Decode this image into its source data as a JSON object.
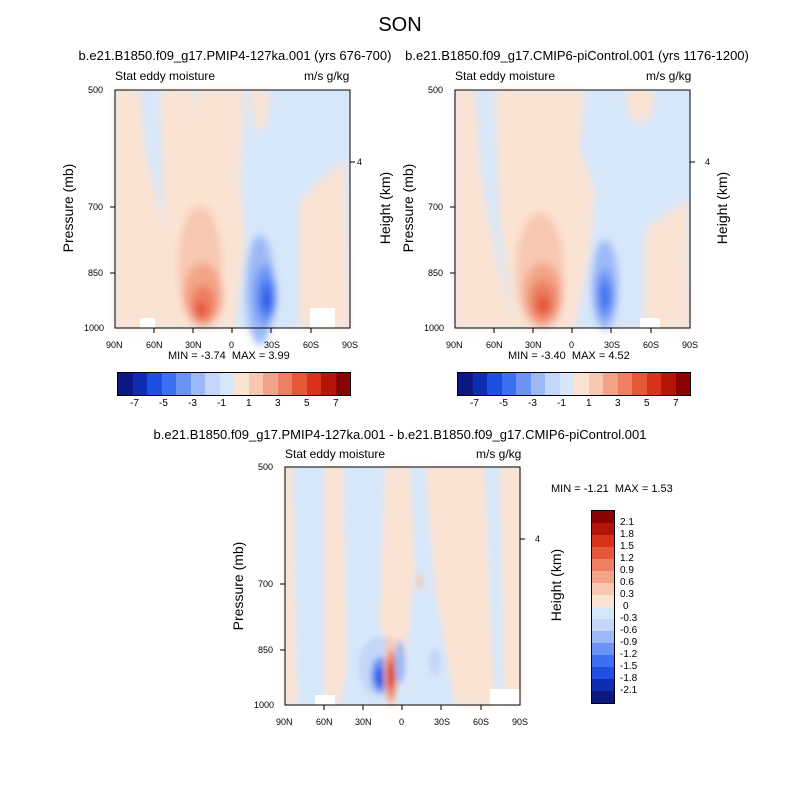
{
  "figure": {
    "title": "SON",
    "left_label": "Stat eddy moisture",
    "right_label": "m/s g/kg",
    "y_title": "Pressure (mb)",
    "y2_title": "Height (km)",
    "y_ticks": [
      "500",
      "700",
      "850",
      "1000"
    ],
    "y2_ticks": [
      "4"
    ],
    "x_ticks": [
      "90N",
      "60N",
      "30N",
      "0",
      "30S",
      "60S",
      "90S"
    ]
  },
  "colors": {
    "cool": [
      "#0a1880",
      "#0f2db3",
      "#1f4fe0",
      "#3d6ff2",
      "#6b93f5",
      "#9bb8f7",
      "#c4d6f9",
      "#d7e7fa"
    ],
    "warm": [
      "#fbe3d3",
      "#f8c8b1",
      "#f3a488",
      "#ee7f62",
      "#e65639",
      "#d8321b",
      "#b51508",
      "#8b0000"
    ]
  },
  "chart_data": [
    {
      "type": "heatmap",
      "title": "b.e21.B1850.f09_g17.PMIP4-127ka.001 (yrs 676-700)",
      "xlabel": "",
      "ylabel": "Pressure (mb)",
      "y2label": "Height (km)",
      "min_label": "MIN =",
      "min": "-3.74",
      "max_label": "MAX =",
      "max": "3.99",
      "colorbar_labels": [
        "-7",
        "-5",
        "-3",
        "-1",
        "1",
        "3",
        "5",
        "7"
      ],
      "features": [
        {
          "lat": 25,
          "p": 940,
          "value": 3.99
        },
        {
          "lat": 30,
          "p": 850,
          "value": 2.5
        },
        {
          "lat": 40,
          "p": 720,
          "value": 1.2
        },
        {
          "lat": -22,
          "p": 920,
          "value": -3.74
        },
        {
          "lat": -20,
          "p": 800,
          "value": -1.5
        },
        {
          "lat": -15,
          "p": 720,
          "value": -0.8
        }
      ]
    },
    {
      "type": "heatmap",
      "title": "b.e21.B1850.f09_g17.CMIP6-piControl.001 (yrs 1176-1200)",
      "xlabel": "",
      "ylabel": "Pressure (mb)",
      "y2label": "Height (km)",
      "min_label": "MIN =",
      "min": "-3.40",
      "max_label": "MAX =",
      "max": "4.52",
      "colorbar_labels": [
        "-7",
        "-5",
        "-3",
        "-1",
        "1",
        "3",
        "5",
        "7"
      ],
      "features": [
        {
          "lat": 25,
          "p": 930,
          "value": 4.52
        },
        {
          "lat": 30,
          "p": 850,
          "value": 2.8
        },
        {
          "lat": 40,
          "p": 720,
          "value": 1.3
        },
        {
          "lat": -22,
          "p": 910,
          "value": -3.4
        },
        {
          "lat": -20,
          "p": 800,
          "value": -1.4
        }
      ]
    },
    {
      "type": "heatmap",
      "title": "b.e21.B1850.f09_g17.PMIP4-127ka.001 - b.e21.B1850.f09_g17.CMIP6-piControl.001",
      "xlabel": "",
      "ylabel": "Pressure (mb)",
      "y2label": "Height (km)",
      "min_label": "MIN =",
      "min": "-1.21",
      "max_label": "MAX =",
      "max": "1.53",
      "colorbar_labels": [
        "2.1",
        "1.8",
        "1.5",
        "1.2",
        "0.9",
        "0.6",
        "0.3",
        "0",
        "-0.3",
        "-0.6",
        "-0.9",
        "-1.2",
        "-1.5",
        "-1.8",
        "-2.1"
      ],
      "features": [
        {
          "lat": 12,
          "p": 920,
          "value": 1.53
        },
        {
          "lat": 18,
          "p": 920,
          "value": -1.21
        },
        {
          "lat": 22,
          "p": 860,
          "value": -0.6
        },
        {
          "lat": 8,
          "p": 880,
          "value": -0.3
        },
        {
          "lat": -15,
          "p": 700,
          "value": 0.3
        }
      ]
    }
  ]
}
